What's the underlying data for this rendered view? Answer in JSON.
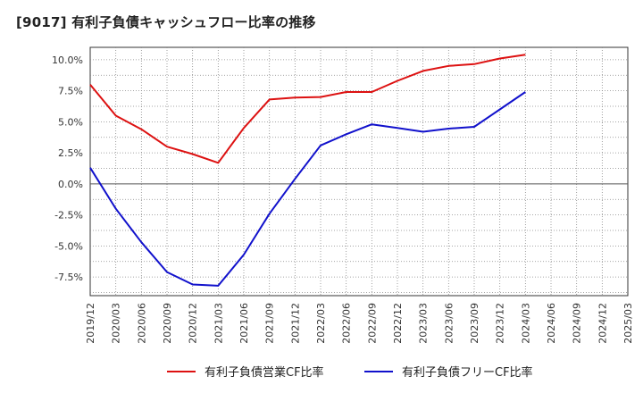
{
  "title": "[9017]  有利子負債キャッシュフロー比率の推移",
  "chart_data": {
    "type": "line",
    "title": "[9017]  有利子負債キャッシュフロー比率の推移",
    "xlabel": "",
    "ylabel": "",
    "x_tick_labels": [
      "2019/12",
      "2020/03",
      "2020/06",
      "2020/09",
      "2020/12",
      "2021/03",
      "2021/06",
      "2021/09",
      "2021/12",
      "2022/03",
      "2022/06",
      "2022/09",
      "2022/12",
      "2023/03",
      "2023/06",
      "2023/09",
      "2023/12",
      "2024/03",
      "2024/06",
      "2024/09",
      "2024/12",
      "2025/03"
    ],
    "y_tick_labels": [
      "10.0%",
      "7.5%",
      "5.0%",
      "2.5%",
      "0.0%",
      "-2.5%",
      "-5.0%",
      "-7.5%"
    ],
    "ylim": [
      -9.0,
      11.0
    ],
    "grid": true,
    "legend_position": "bottom",
    "series": [
      {
        "name": "有利子負債営業CF比率",
        "color": "#dd1111",
        "x": [
          "2019/12",
          "2020/03",
          "2020/06",
          "2020/09",
          "2020/12",
          "2021/03",
          "2021/06",
          "2021/09",
          "2021/12",
          "2022/03",
          "2022/06",
          "2022/09",
          "2022/12",
          "2023/03",
          "2023/06",
          "2023/09",
          "2023/12",
          "2024/03"
        ],
        "values": [
          8.0,
          5.5,
          4.4,
          3.0,
          2.4,
          1.7,
          4.5,
          6.8,
          6.95,
          7.0,
          7.4,
          7.4,
          8.3,
          9.1,
          9.5,
          9.65,
          10.1,
          10.4
        ]
      },
      {
        "name": "有利子負債フリーCF比率",
        "color": "#1111cc",
        "x": [
          "2019/12",
          "2020/03",
          "2020/06",
          "2020/09",
          "2020/12",
          "2021/03",
          "2021/06",
          "2021/09",
          "2021/12",
          "2022/03",
          "2022/06",
          "2022/09",
          "2022/12",
          "2023/03",
          "2023/06",
          "2023/09",
          "2023/12",
          "2024/03"
        ],
        "values": [
          1.3,
          -2.0,
          -4.7,
          -7.1,
          -8.1,
          -8.2,
          -5.7,
          -2.4,
          0.4,
          3.1,
          4.0,
          4.8,
          4.5,
          4.2,
          4.45,
          4.6,
          6.0,
          7.4
        ]
      }
    ]
  }
}
